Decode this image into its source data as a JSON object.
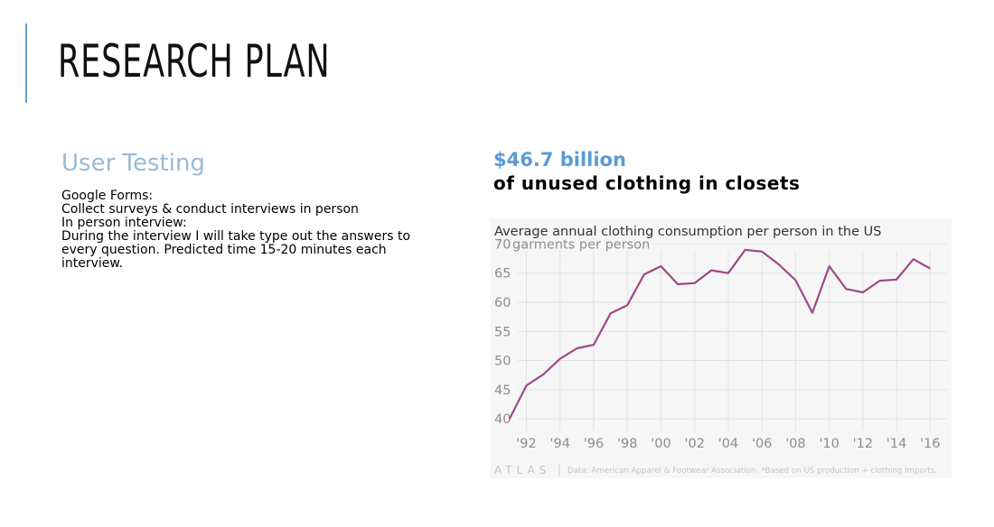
{
  "slide": {
    "title": "RESEARCH PLAN"
  },
  "left": {
    "heading": "User Testing",
    "lines": [
      "Google Forms:",
      "Collect surveys & conduct interviews in person",
      "In person interview:",
      "During the interview I will take type out the answers to",
      "every question. Predicted time 15-20 minutes each",
      "interview."
    ]
  },
  "right": {
    "stat_value": "$46.7 billion",
    "stat_caption": "of unused clothing in closets"
  },
  "colors": {
    "accent": "#5b9bd5",
    "heading": "#9ab9d3",
    "line": "#9e4a83",
    "grid": "#e3e3e3",
    "panel_bg": "#f6f6f6"
  },
  "chart_data": {
    "type": "line",
    "title": "Average annual clothing consumption per person in the US",
    "ylabel": "garments per person",
    "ylim": [
      38,
      71
    ],
    "y_ticks": [
      40,
      45,
      50,
      55,
      60,
      65,
      70
    ],
    "x_ticks": [
      1992,
      1994,
      1996,
      1998,
      2000,
      2002,
      2004,
      2006,
      2008,
      2010,
      2012,
      2014,
      2016
    ],
    "x_tick_labels": [
      "'92",
      "'94",
      "'96",
      "'98",
      "'00",
      "'02",
      "'04",
      "'06",
      "'08",
      "'10",
      "'12",
      "'14",
      "'16"
    ],
    "xlim": [
      1990.2,
      2017
    ],
    "grid": true,
    "series": [
      {
        "x": [
          1991,
          1992,
          1993,
          1994,
          1995,
          1996,
          1997,
          1998,
          1999,
          2000,
          2001,
          2002,
          2003,
          2004,
          2005,
          2006,
          2007,
          2008,
          2009,
          2010,
          2011,
          2012,
          2013,
          2014,
          2015,
          2016
        ],
        "values": [
          40.0,
          45.7,
          47.6,
          50.3,
          52.1,
          52.7,
          58.1,
          59.5,
          64.8,
          66.2,
          63.1,
          63.3,
          65.5,
          65.0,
          69.0,
          68.7,
          66.5,
          63.8,
          58.2,
          66.2,
          62.3,
          61.7,
          63.7,
          63.9,
          67.4,
          65.8
        ]
      }
    ],
    "footer_brand": "ATLAS",
    "footer_source": "Data: American Apparel & Footwear Association. *Based on US production + clothing imports."
  }
}
